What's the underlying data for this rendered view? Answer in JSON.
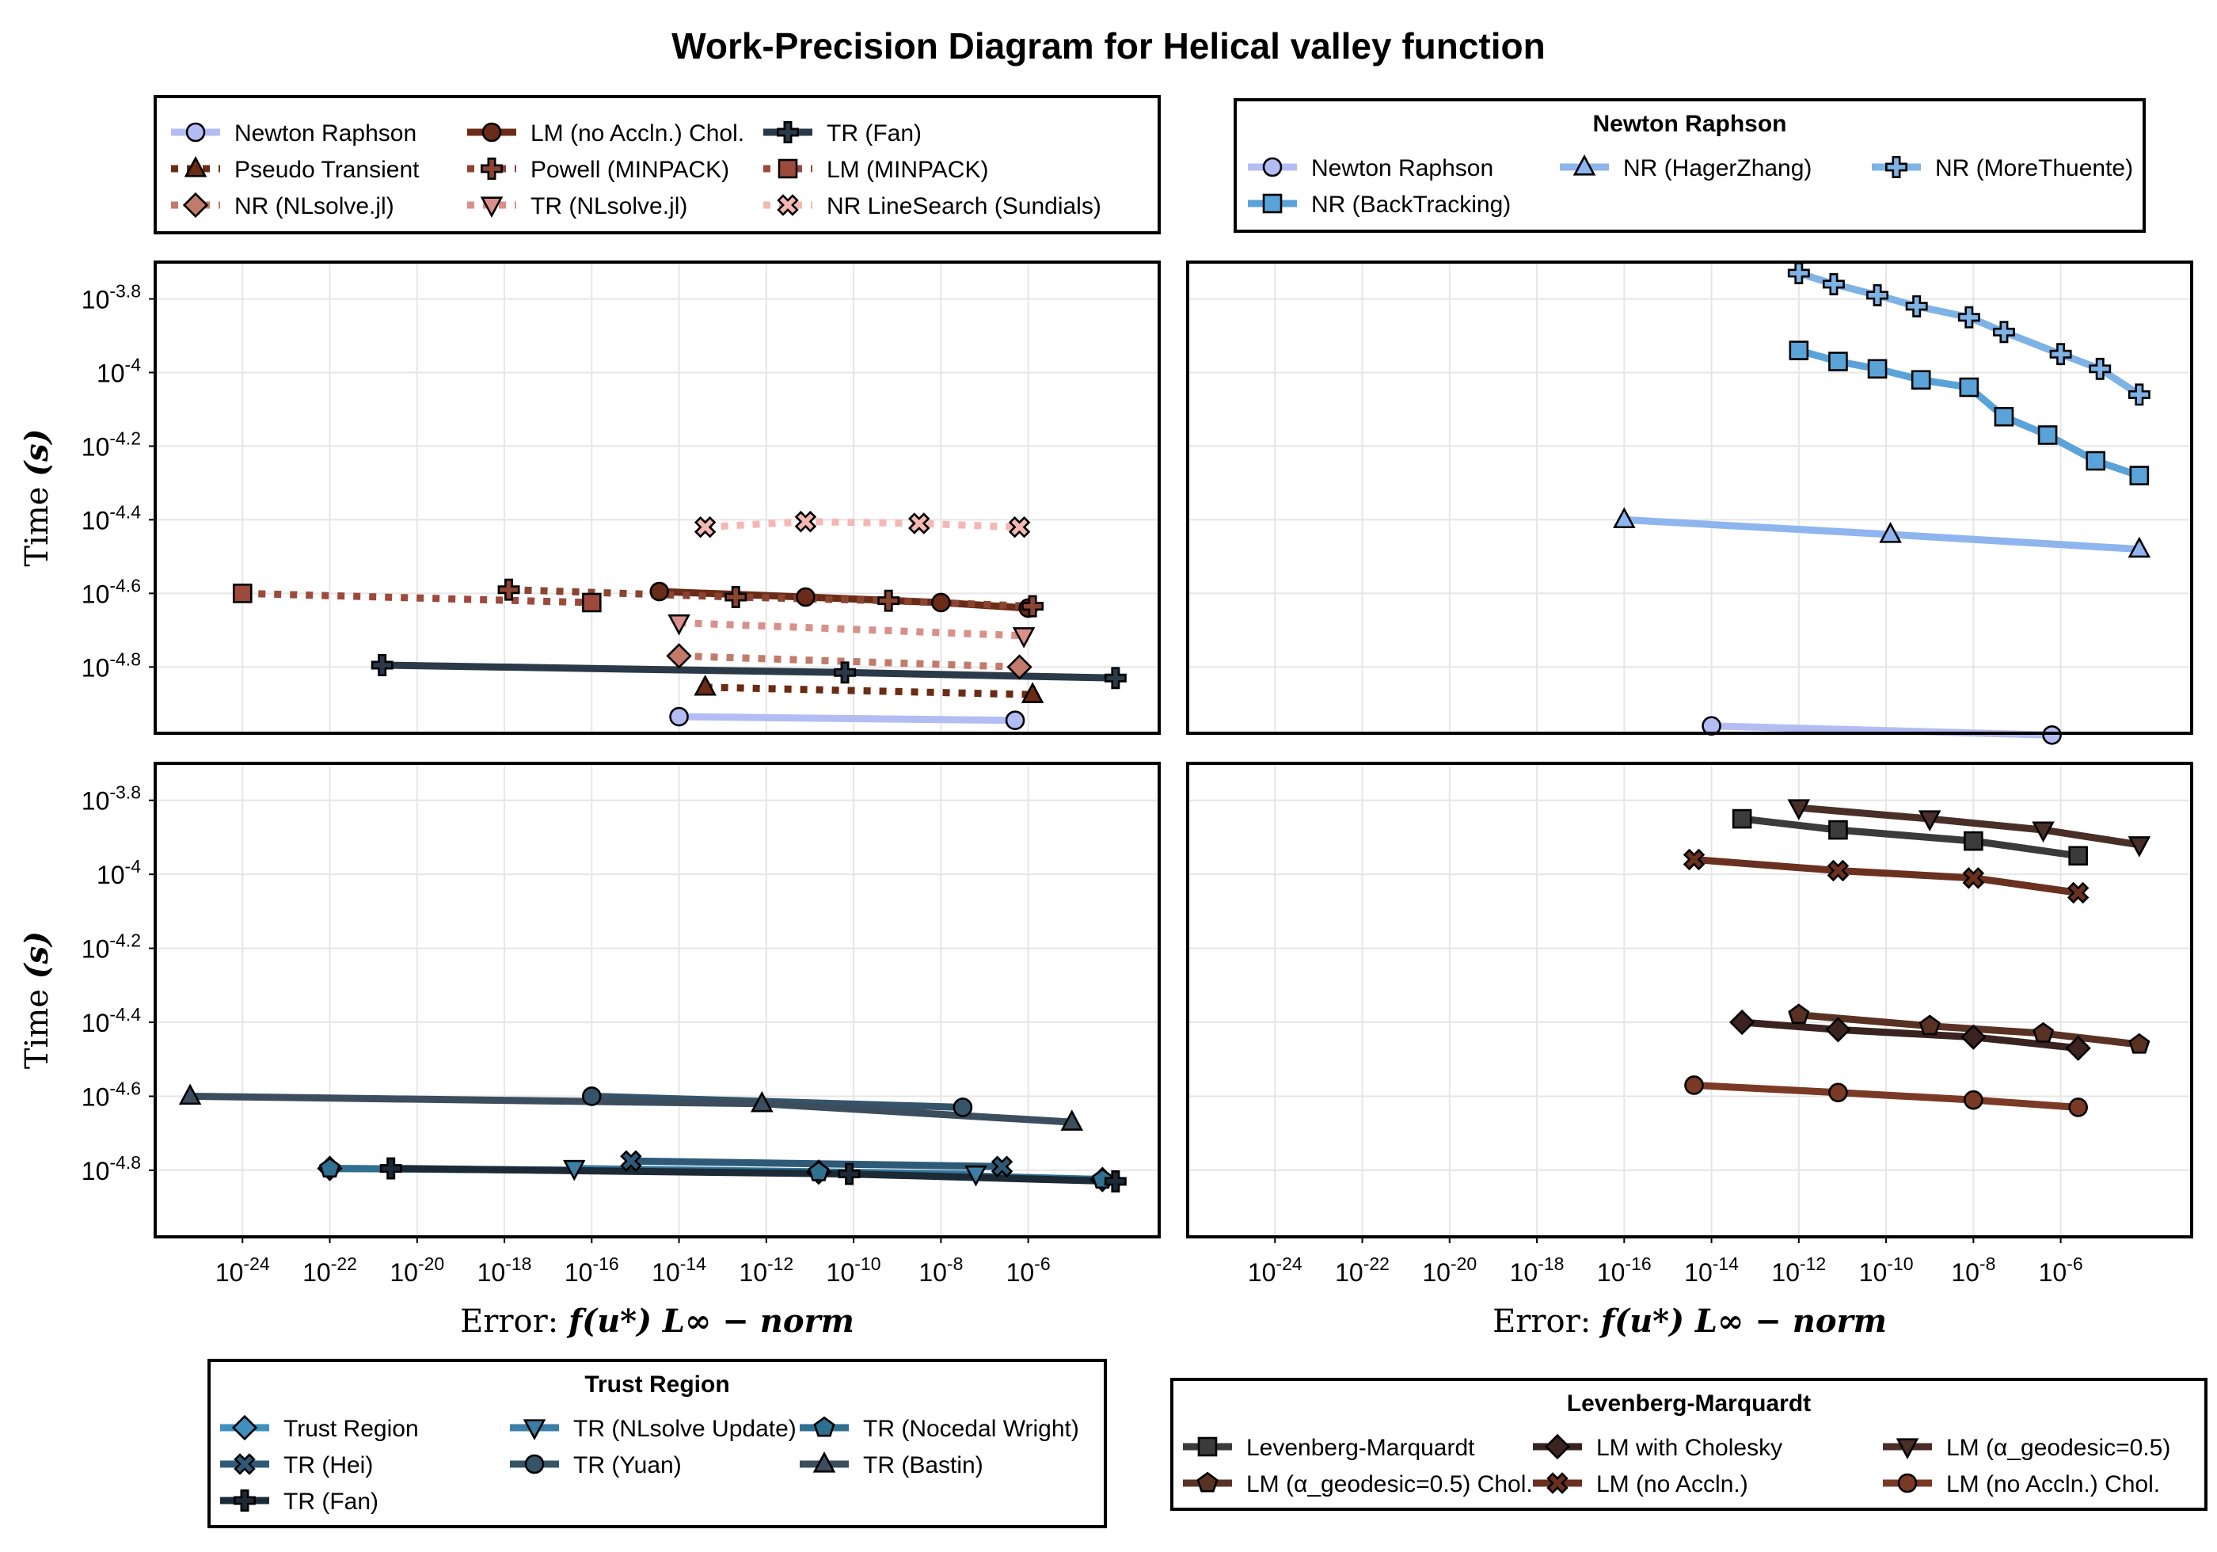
{
  "title": "Work-Precision Diagram for Helical valley function",
  "colors": {
    "nr_light": "#b3bdf4",
    "pt_dark": "#6b2c15",
    "nlsolve_nr": "#c27b6b",
    "lm_chol": "#6a2c18",
    "powell": "#8a4532",
    "tr_nlsolve": "#d9908a",
    "tr_fan": "#2b3a48",
    "lm_minpack": "#9d4a3c",
    "sundials": "#f4b8b3",
    "nr_hz": "#8eb5ee",
    "nr_mt": "#7fb2e5",
    "nr_bt": "#5aa3d8",
    "tr_main": "#3f8fbf",
    "tr_nlsolve_up": "#3b7fa6",
    "tr_nocedal": "#2f6f90",
    "tr_hei": "#2e5a78",
    "tr_yuan": "#355469",
    "tr_bastin": "#3c4e5d",
    "tr_fan2": "#1b2a36",
    "lm_main": "#3b3b3b",
    "lm_cholesky": "#3a2320",
    "lm_geo": "#4a2e28",
    "lm_geo_chol": "#5a3224",
    "lm_noaccln": "#6a3020",
    "lm_noaccln_chol": "#7a3a26"
  },
  "legend_top_left": {
    "entries": [
      "Newton Raphson",
      "LM (no Accln.) Chol.",
      "TR (Fan)",
      "Pseudo Transient",
      "Powell (MINPACK)",
      "LM (MINPACK)",
      "NR (NLsolve.jl)",
      "TR (NLsolve.jl)",
      "NR LineSearch (Sundials)"
    ]
  },
  "legend_top_right": {
    "title": "Newton Raphson",
    "entries": [
      "Newton Raphson",
      "NR (HagerZhang)",
      "NR (MoreThuente)",
      "NR (BackTracking)"
    ]
  },
  "legend_bottom_left": {
    "title": "Trust Region",
    "entries": [
      "Trust Region",
      "TR (NLsolve Update)",
      "TR (Nocedal Wright)",
      "TR (Hei)",
      "TR (Yuan)",
      "TR (Bastin)",
      "TR (Fan)"
    ]
  },
  "legend_bottom_right": {
    "title": "Levenberg-Marquardt",
    "entries": [
      "Levenberg-Marquardt",
      "LM with Cholesky",
      "LM (α_geodesic=0.5)",
      "LM (α_geodesic=0.5) Chol.",
      "LM (no Accln.)",
      "LM (no Accln.) Chol."
    ]
  },
  "axes": {
    "ylabel_prefix": "Time",
    "ylabel_var": "(s)",
    "xlabel_prefix": "Error:",
    "xlabel_expr": "f(u*)",
    "xlabel_norm": "L∞ − norm",
    "x_scale": "log10",
    "y_scale": "log10",
    "x_ticks": [
      {
        "base": "10",
        "exp": "-24"
      },
      {
        "base": "10",
        "exp": "-22"
      },
      {
        "base": "10",
        "exp": "-20"
      },
      {
        "base": "10",
        "exp": "-18"
      },
      {
        "base": "10",
        "exp": "-16"
      },
      {
        "base": "10",
        "exp": "-14"
      },
      {
        "base": "10",
        "exp": "-12"
      },
      {
        "base": "10",
        "exp": "-10"
      },
      {
        "base": "10",
        "exp": "-8"
      },
      {
        "base": "10",
        "exp": "-6"
      }
    ],
    "y_ticks": [
      {
        "base": "10",
        "exp": "-3.8"
      },
      {
        "base": "10",
        "exp": "-4"
      },
      {
        "base": "10",
        "exp": "-4.2"
      },
      {
        "base": "10",
        "exp": "-4.4"
      },
      {
        "base": "10",
        "exp": "-4.6"
      },
      {
        "base": "10",
        "exp": "-4.8"
      }
    ],
    "xlim_log10": [
      -26,
      -3
    ],
    "ylim_log10": [
      -4.98,
      -3.7
    ],
    "grid": true
  },
  "chart_data": [
    {
      "type": "line",
      "panel": "top-left",
      "x_scale": "log10",
      "y_scale": "log10",
      "series": [
        {
          "name": "Newton Raphson",
          "x_log10": [
            -14.0,
            -6.3
          ],
          "y_log10": [
            -4.935,
            -4.945
          ],
          "marker": "circle",
          "color": "nr_light",
          "dash": "solid"
        },
        {
          "name": "LM (no Accln.) Chol.",
          "x_log10": [
            -14.45,
            -11.1,
            -8.0,
            -6.0
          ],
          "y_log10": [
            -4.595,
            -4.61,
            -4.625,
            -4.64
          ],
          "marker": "circle",
          "color": "lm_chol",
          "dash": "solid"
        },
        {
          "name": "TR (Fan)",
          "x_log10": [
            -20.8,
            -10.2,
            -4.0
          ],
          "y_log10": [
            -4.795,
            -4.815,
            -4.83
          ],
          "marker": "cross",
          "color": "tr_fan",
          "dash": "solid"
        },
        {
          "name": "Pseudo Transient",
          "x_log10": [
            -13.4,
            -5.9
          ],
          "y_log10": [
            -4.855,
            -4.875
          ],
          "marker": "triangle",
          "color": "pt_dark",
          "dash": "dot"
        },
        {
          "name": "Powell (MINPACK)",
          "x_log10": [
            -17.9,
            -12.7,
            -9.2,
            -5.9
          ],
          "y_log10": [
            -4.59,
            -4.61,
            -4.62,
            -4.635
          ],
          "marker": "cross",
          "color": "powell",
          "dash": "dot"
        },
        {
          "name": "LM (MINPACK)",
          "x_log10": [
            -24.0,
            -16.0
          ],
          "y_log10": [
            -4.6,
            -4.625
          ],
          "marker": "square",
          "color": "lm_minpack",
          "dash": "dot"
        },
        {
          "name": "NR (NLsolve.jl)",
          "x_log10": [
            -14.0,
            -6.2
          ],
          "y_log10": [
            -4.77,
            -4.8
          ],
          "marker": "diamond",
          "color": "nlsolve_nr",
          "dash": "dot"
        },
        {
          "name": "TR (NLsolve.jl)",
          "x_log10": [
            -14.0,
            -6.1
          ],
          "y_log10": [
            -4.68,
            -4.715
          ],
          "marker": "triangle_down",
          "color": "tr_nlsolve",
          "dash": "dot"
        },
        {
          "name": "NR LineSearch (Sundials)",
          "x_log10": [
            -13.4,
            -11.1,
            -8.5,
            -6.2
          ],
          "y_log10": [
            -4.42,
            -4.405,
            -4.41,
            -4.42
          ],
          "marker": "x_cross",
          "color": "sundials",
          "dash": "dot"
        }
      ]
    },
    {
      "type": "line",
      "panel": "top-right",
      "x_scale": "log10",
      "y_scale": "log10",
      "series": [
        {
          "name": "Newton Raphson",
          "x_log10": [
            -14.0,
            -6.2
          ],
          "y_log10": [
            -4.96,
            -4.985
          ],
          "marker": "circle",
          "color": "nr_light",
          "dash": "solid"
        },
        {
          "name": "NR (HagerZhang)",
          "x_log10": [
            -16.0,
            -9.9,
            -4.2
          ],
          "y_log10": [
            -4.4,
            -4.44,
            -4.48
          ],
          "marker": "triangle",
          "color": "nr_hz",
          "dash": "solid"
        },
        {
          "name": "NR (MoreThuente)",
          "x_log10": [
            -12.0,
            -11.2,
            -10.2,
            -9.3,
            -8.1,
            -7.3,
            -6.0,
            -5.1,
            -4.2
          ],
          "y_log10": [
            -3.73,
            -3.76,
            -3.79,
            -3.82,
            -3.85,
            -3.89,
            -3.95,
            -3.99,
            -4.06
          ],
          "marker": "cross",
          "color": "nr_mt",
          "dash": "solid"
        },
        {
          "name": "NR (BackTracking)",
          "x_log10": [
            -12.0,
            -11.1,
            -10.2,
            -9.2,
            -8.1,
            -7.3,
            -6.3,
            -5.2,
            -4.2
          ],
          "y_log10": [
            -3.94,
            -3.97,
            -3.99,
            -4.02,
            -4.04,
            -4.12,
            -4.17,
            -4.24,
            -4.28
          ],
          "marker": "square",
          "color": "nr_bt",
          "dash": "solid"
        }
      ]
    },
    {
      "type": "line",
      "panel": "bottom-left",
      "x_scale": "log10",
      "y_scale": "log10",
      "series": [
        {
          "name": "Trust Region",
          "x_log10": [
            -22.0,
            -10.8,
            -4.3
          ],
          "y_log10": [
            -4.795,
            -4.805,
            -4.825
          ],
          "marker": "diamond",
          "color": "tr_main",
          "dash": "solid"
        },
        {
          "name": "TR (NLsolve Update)",
          "x_log10": [
            -16.4,
            -7.2
          ],
          "y_log10": [
            -4.795,
            -4.81
          ],
          "marker": "triangle_down",
          "color": "tr_nlsolve_up",
          "dash": "solid"
        },
        {
          "name": "TR (Nocedal Wright)",
          "x_log10": [
            -22.0,
            -10.8,
            -4.3
          ],
          "y_log10": [
            -4.795,
            -4.805,
            -4.825
          ],
          "marker": "pentagon",
          "color": "tr_nocedal",
          "dash": "solid"
        },
        {
          "name": "TR (Hei)",
          "x_log10": [
            -15.1,
            -6.6
          ],
          "y_log10": [
            -4.775,
            -4.79
          ],
          "marker": "x_cross",
          "color": "tr_hei",
          "dash": "solid"
        },
        {
          "name": "TR (Yuan)",
          "x_log10": [
            -16.0,
            -7.5
          ],
          "y_log10": [
            -4.6,
            -4.63
          ],
          "marker": "circle",
          "color": "tr_yuan",
          "dash": "solid"
        },
        {
          "name": "TR (Bastin)",
          "x_log10": [
            -25.2,
            -12.1,
            -5.0
          ],
          "y_log10": [
            -4.6,
            -4.62,
            -4.67
          ],
          "marker": "triangle",
          "color": "tr_bastin",
          "dash": "solid"
        },
        {
          "name": "TR (Fan)",
          "x_log10": [
            -20.6,
            -10.1,
            -4.0
          ],
          "y_log10": [
            -4.795,
            -4.81,
            -4.83
          ],
          "marker": "cross",
          "color": "tr_fan2",
          "dash": "solid"
        }
      ]
    },
    {
      "type": "line",
      "panel": "bottom-right",
      "x_scale": "log10",
      "y_scale": "log10",
      "series": [
        {
          "name": "Levenberg-Marquardt",
          "x_log10": [
            -13.3,
            -11.1,
            -8.0,
            -5.6
          ],
          "y_log10": [
            -3.85,
            -3.88,
            -3.91,
            -3.95
          ],
          "marker": "square",
          "color": "lm_main",
          "dash": "solid"
        },
        {
          "name": "LM with Cholesky",
          "x_log10": [
            -13.3,
            -11.1,
            -8.0,
            -5.6
          ],
          "y_log10": [
            -4.4,
            -4.42,
            -4.44,
            -4.47
          ],
          "marker": "diamond",
          "color": "lm_cholesky",
          "dash": "solid"
        },
        {
          "name": "LM (α_geodesic=0.5)",
          "x_log10": [
            -12.0,
            -9.0,
            -6.4,
            -4.2
          ],
          "y_log10": [
            -3.82,
            -3.85,
            -3.88,
            -3.92
          ],
          "marker": "triangle_down",
          "color": "lm_geo",
          "dash": "solid"
        },
        {
          "name": "LM (α_geodesic=0.5) Chol.",
          "x_log10": [
            -12.0,
            -9.0,
            -6.4,
            -4.2
          ],
          "y_log10": [
            -4.38,
            -4.41,
            -4.43,
            -4.46
          ],
          "marker": "pentagon",
          "color": "lm_geo_chol",
          "dash": "solid"
        },
        {
          "name": "LM (no Accln.)",
          "x_log10": [
            -14.4,
            -11.1,
            -8.0,
            -5.6
          ],
          "y_log10": [
            -3.96,
            -3.99,
            -4.01,
            -4.05
          ],
          "marker": "x_cross",
          "color": "lm_noaccln",
          "dash": "solid"
        },
        {
          "name": "LM (no Accln.) Chol.",
          "x_log10": [
            -14.4,
            -11.1,
            -8.0,
            -5.6
          ],
          "y_log10": [
            -4.57,
            -4.59,
            -4.61,
            -4.63
          ],
          "marker": "circle",
          "color": "lm_noaccln_chol",
          "dash": "solid"
        }
      ]
    }
  ]
}
